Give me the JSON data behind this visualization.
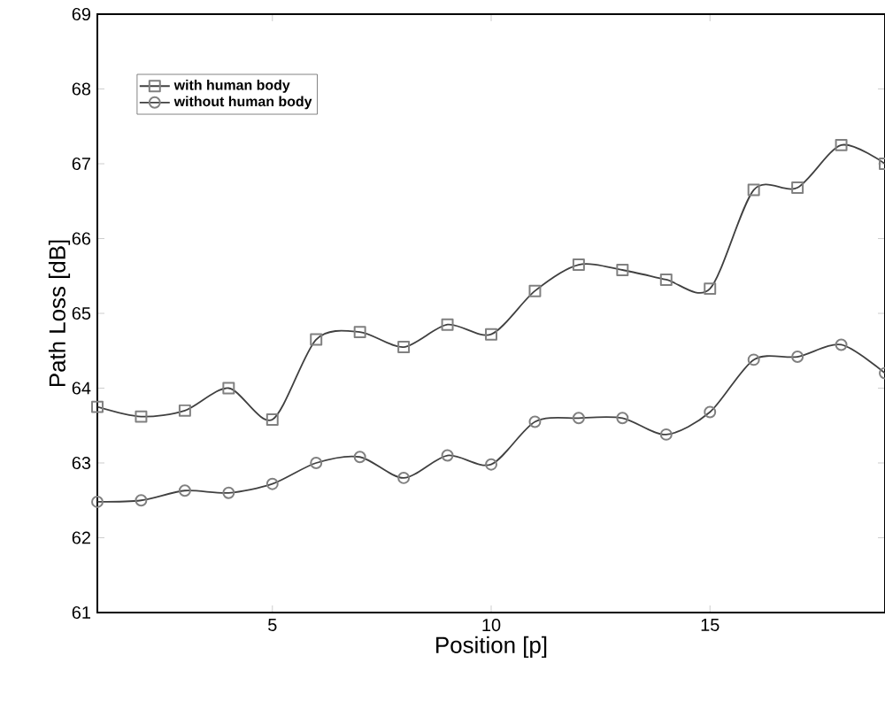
{
  "chart_data": {
    "type": "line",
    "xlabel": "Position [p]",
    "ylabel": "Path Loss [dB]",
    "x": [
      1,
      2,
      3,
      4,
      5,
      6,
      7,
      8,
      9,
      10,
      11,
      12,
      13,
      14,
      15,
      16,
      17,
      18,
      19
    ],
    "series": [
      {
        "name": "with human body",
        "color": "#404040",
        "marker": "square",
        "values": [
          63.75,
          63.62,
          63.7,
          64.0,
          63.58,
          64.65,
          64.75,
          64.55,
          64.85,
          64.72,
          65.3,
          65.65,
          65.58,
          65.45,
          65.33,
          66.65,
          66.68,
          67.25,
          67.0
        ]
      },
      {
        "name": "without human body",
        "color": "#404040",
        "marker": "circle",
        "values": [
          62.48,
          62.5,
          62.63,
          62.6,
          62.72,
          63.0,
          63.08,
          62.8,
          63.1,
          62.98,
          63.55,
          63.6,
          63.6,
          63.38,
          63.68,
          64.38,
          64.42,
          64.58,
          64.2
        ]
      }
    ],
    "xlim": [
      1,
      19
    ],
    "ylim": [
      61,
      69
    ],
    "xticks": [
      5,
      10,
      15
    ],
    "yticks": [
      61,
      62,
      63,
      64,
      65,
      66,
      67,
      68,
      69
    ],
    "legend": "top left",
    "grid": false,
    "line_style": "solid"
  }
}
